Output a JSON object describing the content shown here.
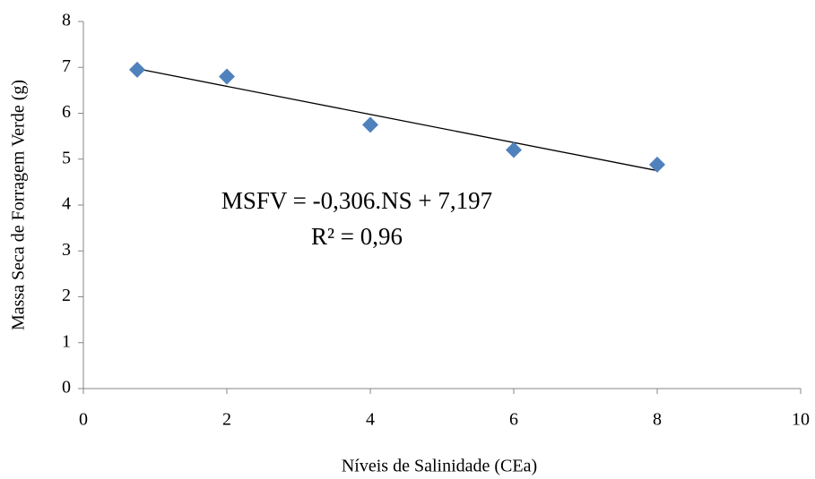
{
  "chart_data": {
    "type": "scatter",
    "x_label": "Níveis de Salinidade (CEa)",
    "y_label": "Massa Seca de Forragem Verde (g)",
    "x": [
      0.75,
      2,
      4,
      6,
      8
    ],
    "values": [
      6.95,
      6.8,
      5.75,
      5.2,
      4.88
    ],
    "color": "#4f81bd",
    "trendline": {
      "x": [
        0.75,
        8
      ],
      "values": [
        6.97,
        4.75
      ],
      "color": "#000000"
    },
    "annotations": [
      "MSFV = -0,306.NS + 7,197",
      "R² = 0,96"
    ],
    "xlim": [
      0,
      10
    ],
    "xticks": [
      0,
      2,
      4,
      6,
      8,
      10
    ],
    "ylim": [
      0,
      8
    ],
    "yticks": [
      0,
      1,
      2,
      3,
      4,
      5,
      6,
      7,
      8
    ],
    "grid": false
  }
}
